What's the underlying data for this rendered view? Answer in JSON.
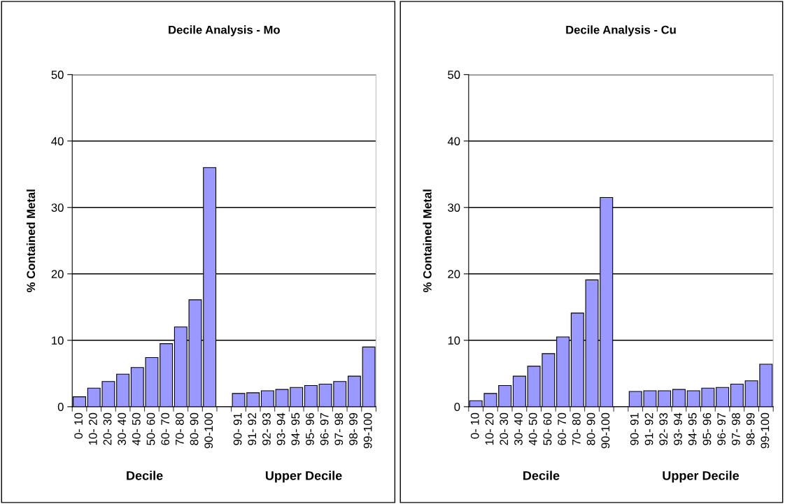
{
  "chart_data": [
    {
      "type": "bar",
      "title": "Decile Analysis - Mo",
      "ylabel": "% Contained Metal",
      "categories": [
        "0- 10",
        "10- 20",
        "20- 30",
        "30- 40",
        "40- 50",
        "50- 60",
        "60- 70",
        "70- 80",
        "80- 90",
        "90-100",
        null,
        "90- 91",
        "91- 92",
        "92- 93",
        "93- 94",
        "94- 95",
        "95- 96",
        "96- 97",
        "97- 98",
        "98- 99",
        "99-100"
      ],
      "values": [
        1.5,
        2.8,
        3.8,
        4.9,
        5.9,
        7.4,
        9.5,
        12,
        16.1,
        36,
        null,
        2.0,
        2.1,
        2.4,
        2.6,
        2.9,
        3.2,
        3.4,
        3.8,
        4.6,
        9.0
      ],
      "color": "#9999ff",
      "ylim": [
        0,
        50
      ],
      "yticks": [
        0,
        10,
        20,
        30,
        40,
        50
      ],
      "grid": "y",
      "legend": false,
      "annotations": [
        "Decile",
        "Upper Decile"
      ]
    },
    {
      "type": "bar",
      "title": "Decile Analysis - Cu",
      "ylabel": "% Contained Metal",
      "categories": [
        "0- 10",
        "10- 20",
        "20- 30",
        "30- 40",
        "40- 50",
        "50- 60",
        "60- 70",
        "70- 80",
        "80- 90",
        "90-100",
        null,
        "90- 91",
        "91- 92",
        "92- 93",
        "93- 94",
        "94- 95",
        "95- 96",
        "96- 97",
        "97- 98",
        "98- 99",
        "99-100"
      ],
      "values": [
        0.9,
        2.0,
        3.2,
        4.6,
        6.1,
        8.0,
        10.5,
        14.1,
        19.1,
        31.5,
        null,
        2.3,
        2.4,
        2.4,
        2.6,
        2.4,
        2.8,
        2.9,
        3.4,
        3.9,
        6.4
      ],
      "color": "#9999ff",
      "ylim": [
        0,
        50
      ],
      "yticks": [
        0,
        10,
        20,
        30,
        40,
        50
      ],
      "grid": "y",
      "legend": false,
      "annotations": [
        "Decile",
        "Upper Decile"
      ]
    }
  ]
}
